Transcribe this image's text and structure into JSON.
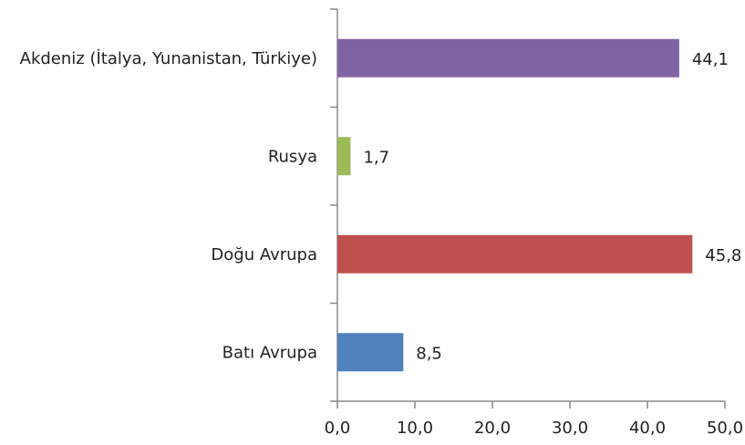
{
  "chart_data": {
    "type": "bar",
    "orientation": "horizontal",
    "categories": [
      "Akdeniz (İtalya, Yunanistan, Türkiye)",
      "Rusya",
      "Doğu Avrupa",
      "Batı Avrupa"
    ],
    "values": [
      44.1,
      1.7,
      45.8,
      8.5
    ],
    "value_labels": [
      "44,1",
      "1,7",
      "45,8",
      "8,5"
    ],
    "colors": [
      "#8064a2",
      "#9bbb59",
      "#c0504d",
      "#4f81bd"
    ],
    "xlim": [
      0,
      50
    ],
    "xticks": [
      {
        "value": 0,
        "label": "0,0"
      },
      {
        "value": 10,
        "label": "10,0"
      },
      {
        "value": 20,
        "label": "20,0"
      },
      {
        "value": 30,
        "label": "30,0"
      },
      {
        "value": 40,
        "label": "40,0"
      },
      {
        "value": 50,
        "label": "50,0"
      }
    ],
    "grid": false
  }
}
